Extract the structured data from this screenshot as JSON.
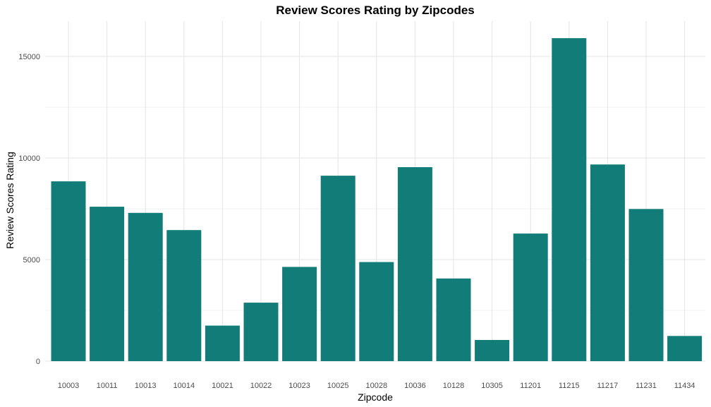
{
  "chart_data": {
    "type": "bar",
    "title": "Review Scores Rating by Zipcodes",
    "xlabel": "Zipcode",
    "ylabel": "Review Scores Rating",
    "categories": [
      "10003",
      "10011",
      "10013",
      "10014",
      "10021",
      "10022",
      "10023",
      "10025",
      "10028",
      "10036",
      "10128",
      "10305",
      "11201",
      "11215",
      "11217",
      "11231",
      "11434"
    ],
    "values": [
      8850,
      7600,
      7300,
      6450,
      1750,
      2880,
      4640,
      9130,
      4880,
      9550,
      4070,
      1040,
      6280,
      15900,
      9680,
      7490,
      1240
    ],
    "yticks": [
      0,
      5000,
      10000,
      15000
    ],
    "ylim": [
      0,
      16700
    ],
    "grid": true,
    "bar_color": "#127C78"
  }
}
